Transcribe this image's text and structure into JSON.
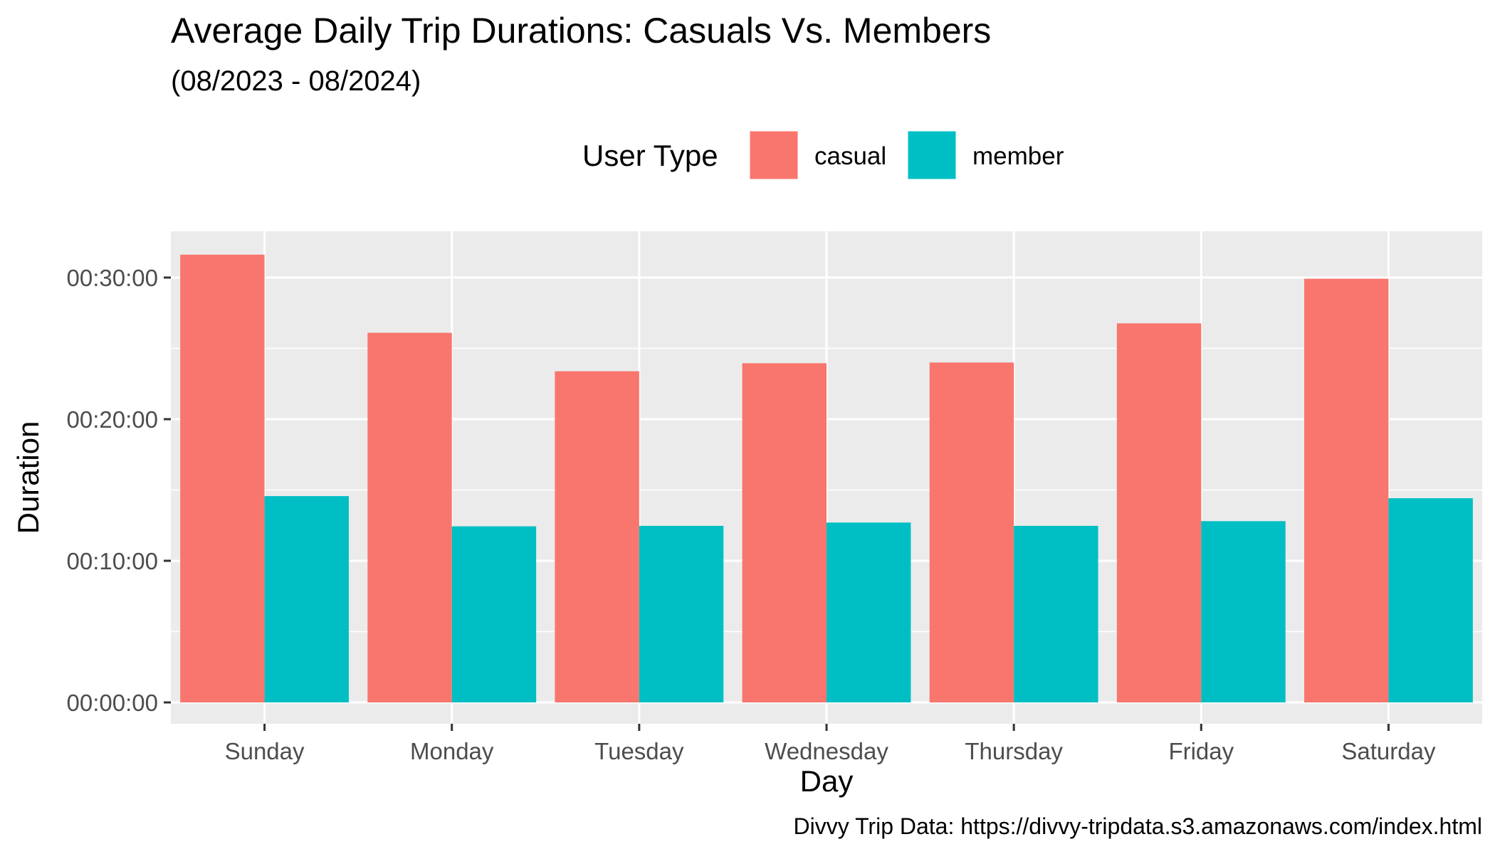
{
  "chart_data": {
    "type": "bar",
    "title": "Average Daily Trip Durations: Casuals Vs. Members",
    "subtitle": "(08/2023 - 08/2024)",
    "xlabel": "Day",
    "ylabel": "Duration",
    "caption": "Divvy Trip Data: https://divvy-tripdata.s3.amazonaws.com/index.html",
    "categories": [
      "Sunday",
      "Monday",
      "Tuesday",
      "Wednesday",
      "Thursday",
      "Friday",
      "Saturday"
    ],
    "value_unit": "seconds",
    "series": [
      {
        "name": "casual",
        "color": "#F8766D",
        "values": [
          1897,
          1566,
          1403,
          1437,
          1440,
          1606,
          1795
        ]
      },
      {
        "name": "member",
        "color": "#00BFC4",
        "values": [
          874,
          746,
          748,
          762,
          748,
          768,
          865
        ]
      }
    ],
    "ylim": [
      0,
      2000
    ],
    "y_ticks": [
      0,
      600,
      1200,
      1800
    ],
    "y_tick_labels": [
      "00:00:00",
      "00:10:00",
      "00:20:00",
      "00:30:00"
    ],
    "legend": {
      "title": "User Type",
      "position": "top"
    },
    "grid": true,
    "panel_background": "#EBEBEB"
  }
}
